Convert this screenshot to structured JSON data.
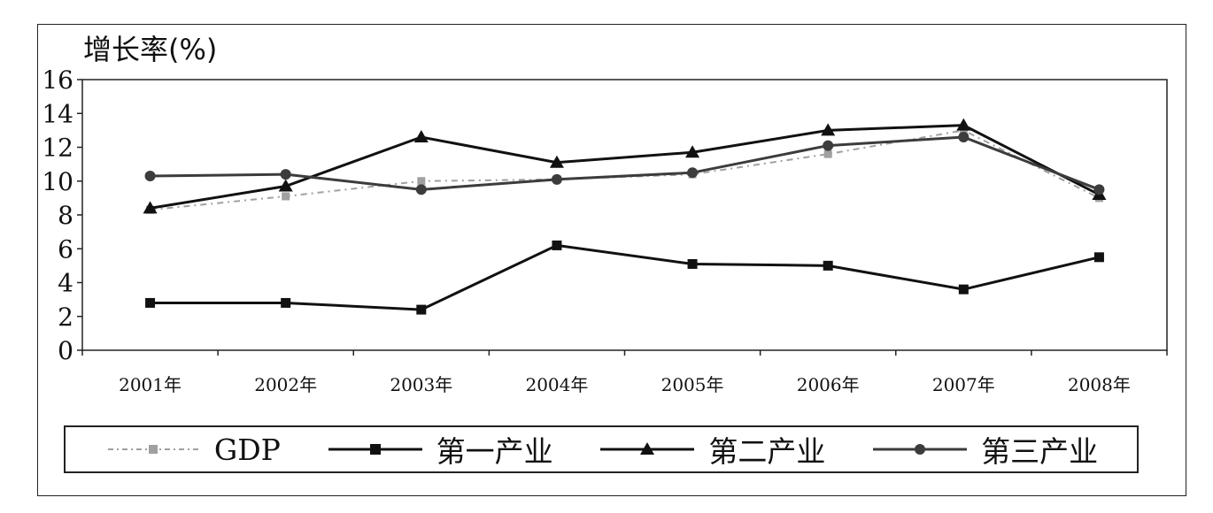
{
  "chart_data": {
    "type": "line",
    "ylabel": "增长率(%)",
    "categories": [
      "2001年",
      "2002年",
      "2003年",
      "2004年",
      "2005年",
      "2006年",
      "2007年",
      "2008年"
    ],
    "ylim": [
      0,
      16
    ],
    "yticks": [
      "0",
      "2",
      "4",
      "6",
      "8",
      "10",
      "12",
      "14",
      "16"
    ],
    "grid": false,
    "legend_position": "bottom",
    "series": [
      {
        "name": "GDP",
        "values": [
          8.3,
          9.1,
          10.0,
          10.1,
          10.4,
          11.6,
          13.0,
          9.0
        ],
        "color": "#a0a0a0",
        "marker": "square",
        "dash": true
      },
      {
        "name": "第一产业",
        "values": [
          2.8,
          2.8,
          2.4,
          6.2,
          5.1,
          5.0,
          3.6,
          5.5
        ],
        "color": "#111111",
        "marker": "square",
        "dash": false
      },
      {
        "name": "第二产业",
        "values": [
          8.4,
          9.7,
          12.6,
          11.1,
          11.7,
          13.0,
          13.3,
          9.2
        ],
        "color": "#111111",
        "marker": "triangle",
        "dash": false
      },
      {
        "name": "第三产业",
        "values": [
          10.3,
          10.4,
          9.5,
          10.1,
          10.5,
          12.1,
          12.6,
          9.5
        ],
        "color": "#3c3c3c",
        "marker": "circle",
        "dash": false
      }
    ]
  }
}
